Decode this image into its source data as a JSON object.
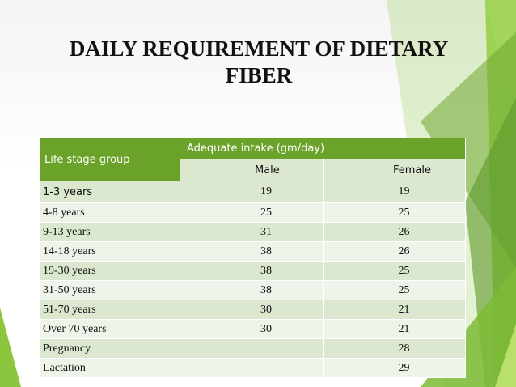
{
  "slide": {
    "title_line1": "DAILY REQUIREMENT OF DIETARY",
    "title_line2": "FIBER",
    "colors": {
      "header_green": "#6aa22a",
      "row_dark": "#dbe8cf",
      "row_light": "#eef4e9",
      "accent_green": "#8cc63f"
    }
  },
  "table": {
    "group_header": "Life stage group",
    "intake_header": "Adequate intake (gm/day)",
    "male_header": "Male",
    "female_header": "Female",
    "rows": [
      {
        "group": "1-3 years",
        "male": "19",
        "female": "19"
      },
      {
        "group": "4-8 years",
        "male": "25",
        "female": "25"
      },
      {
        "group": "9-13 years",
        "male": "31",
        "female": "26"
      },
      {
        "group": "14-18 years",
        "male": "38",
        "female": "26"
      },
      {
        "group": "19-30 years",
        "male": "38",
        "female": "25"
      },
      {
        "group": "31-50 years",
        "male": "38",
        "female": "25"
      },
      {
        "group": "51-70 years",
        "male": "30",
        "female": "21"
      },
      {
        "group": "Over 70 years",
        "male": "30",
        "female": "21"
      },
      {
        "group": "Pregnancy",
        "male": "",
        "female": "28"
      },
      {
        "group": "Lactation",
        "male": "",
        "female": "29"
      }
    ]
  }
}
